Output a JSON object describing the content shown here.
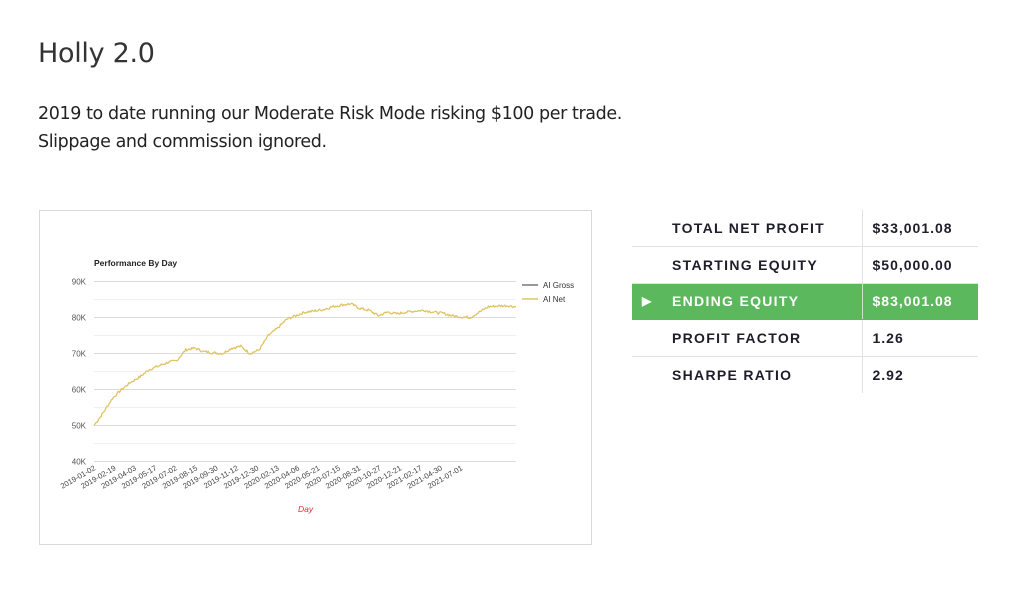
{
  "page": {
    "title": "Holly 2.0",
    "intro_lines": [
      "2019 to date running our Moderate Risk Mode risking $100 per trade.",
      "Slippage and commission ignored."
    ]
  },
  "colors": {
    "net_line": "#e0c463",
    "gross_line": "#777777",
    "highlight_row": "#5cb85c",
    "axis_title": "#dd3333",
    "gridline": "#e6e6e6"
  },
  "stats": {
    "rows": [
      {
        "label": "TOTAL NET PROFIT",
        "value": "$33,001.08",
        "highlight": false,
        "marker": ""
      },
      {
        "label": "STARTING EQUITY",
        "value": "$50,000.00",
        "highlight": false,
        "marker": ""
      },
      {
        "label": "ENDING EQUITY",
        "value": "$83,001.08",
        "highlight": true,
        "marker": "▶"
      },
      {
        "label": "PROFIT FACTOR",
        "value": "1.26",
        "highlight": false,
        "marker": ""
      },
      {
        "label": "SHARPE RATIO",
        "value": "2.92",
        "highlight": false,
        "marker": ""
      }
    ]
  },
  "chart_data": {
    "type": "line",
    "title": "Performance By Day",
    "xlabel": "Day",
    "ylabel": "",
    "ylim": [
      40000,
      90000
    ],
    "y_ticks": [
      "40K",
      "50K",
      "60K",
      "70K",
      "80K",
      "90K"
    ],
    "y_tick_values": [
      40000,
      50000,
      60000,
      70000,
      80000,
      90000
    ],
    "grid": true,
    "legend_position": "right",
    "categories": [
      "2019-01-02",
      "2019-02-19",
      "2019-04-03",
      "2019-05-17",
      "2019-07-02",
      "2019-08-15",
      "2019-09-30",
      "2019-11-12",
      "2019-12-30",
      "2020-02-13",
      "2020-04-06",
      "2020-05-21",
      "2020-07-15",
      "2020-08-31",
      "2020-10-27",
      "2020-12-21",
      "2021-02-17",
      "2021-04-30",
      "2021-07-01"
    ],
    "series": [
      {
        "name": "AI Gross",
        "values": []
      },
      {
        "name": "AI Net",
        "values": [
          50000,
          53500,
          57500,
          60000,
          62000,
          63500,
          65500,
          66500,
          67500,
          68000,
          71000,
          71500,
          70500,
          70200,
          70000,
          71500,
          72000,
          70000,
          71000,
          75000,
          77000,
          79500,
          80500,
          81500,
          81800,
          82200,
          83000,
          83500,
          83800,
          82500,
          82000,
          80500,
          81500,
          81000,
          81500,
          81800,
          82000,
          81500,
          81200,
          80500,
          80200,
          80000,
          81500,
          83000,
          83200,
          83300,
          83000
        ]
      }
    ],
    "x_label_count_note": "x tick labels shown approximately every ~31 trading days"
  }
}
